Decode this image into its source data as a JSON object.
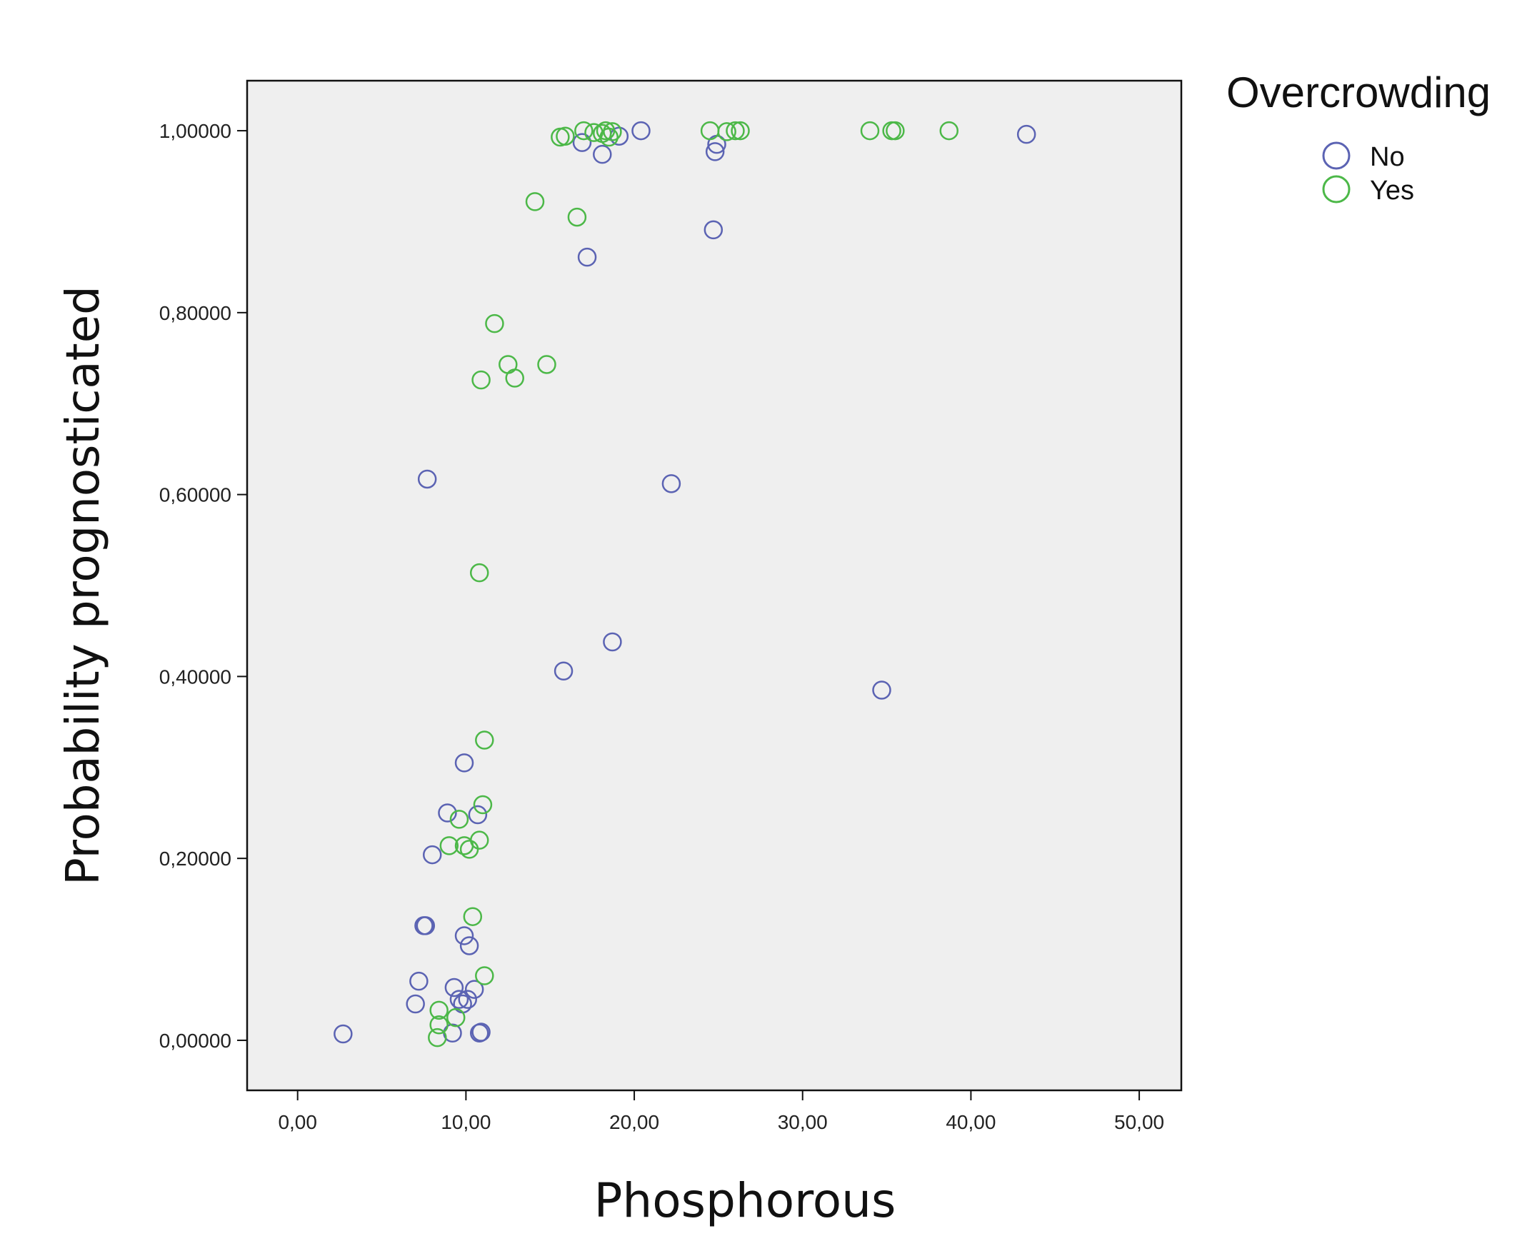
{
  "chart_data": {
    "type": "scatter",
    "xlabel": "Phosphorous",
    "ylabel": "Probability prognosticated",
    "xlim": [
      -3,
      52.5
    ],
    "ylim": [
      -0.055,
      1.055
    ],
    "xticks": [
      0,
      10,
      20,
      30,
      40,
      50
    ],
    "xtick_labels": [
      "0,00",
      "10,00",
      "20,00",
      "30,00",
      "40,00",
      "50,00"
    ],
    "yticks": [
      0,
      0.2,
      0.4,
      0.6,
      0.8,
      1.0
    ],
    "ytick_labels": [
      "0,00000",
      "0,20000",
      "0,40000",
      "0,60000",
      "0,80000",
      "1,00000"
    ],
    "grid": false,
    "legend": {
      "title": "Overcrowding",
      "placement": "top-right, outside plot"
    },
    "colors": {
      "No": "#5b63b3",
      "Yes": "#4cb848",
      "plot_background": "#efefef"
    },
    "series": [
      {
        "name": "No",
        "points": [
          {
            "x": 2.7,
            "y": 0.007
          },
          {
            "x": 7.0,
            "y": 0.04
          },
          {
            "x": 7.2,
            "y": 0.065
          },
          {
            "x": 7.5,
            "y": 0.126
          },
          {
            "x": 7.6,
            "y": 0.126
          },
          {
            "x": 7.7,
            "y": 0.617
          },
          {
            "x": 8.0,
            "y": 0.204
          },
          {
            "x": 8.9,
            "y": 0.25
          },
          {
            "x": 9.2,
            "y": 0.008
          },
          {
            "x": 9.3,
            "y": 0.058
          },
          {
            "x": 9.6,
            "y": 0.045
          },
          {
            "x": 9.8,
            "y": 0.04
          },
          {
            "x": 9.9,
            "y": 0.115
          },
          {
            "x": 9.9,
            "y": 0.305
          },
          {
            "x": 10.1,
            "y": 0.045
          },
          {
            "x": 10.2,
            "y": 0.104
          },
          {
            "x": 10.5,
            "y": 0.056
          },
          {
            "x": 10.7,
            "y": 0.248
          },
          {
            "x": 10.8,
            "y": 0.008
          },
          {
            "x": 10.9,
            "y": 0.009
          },
          {
            "x": 15.8,
            "y": 0.406
          },
          {
            "x": 16.9,
            "y": 0.987
          },
          {
            "x": 17.2,
            "y": 0.861
          },
          {
            "x": 18.1,
            "y": 0.974
          },
          {
            "x": 18.7,
            "y": 0.438
          },
          {
            "x": 19.1,
            "y": 0.994
          },
          {
            "x": 20.4,
            "y": 1.0
          },
          {
            "x": 22.2,
            "y": 0.612
          },
          {
            "x": 24.7,
            "y": 0.891
          },
          {
            "x": 24.8,
            "y": 0.977
          },
          {
            "x": 24.9,
            "y": 0.985
          },
          {
            "x": 34.7,
            "y": 0.385
          },
          {
            "x": 43.3,
            "y": 0.996
          }
        ]
      },
      {
        "name": "Yes",
        "points": [
          {
            "x": 8.3,
            "y": 0.003
          },
          {
            "x": 8.4,
            "y": 0.017
          },
          {
            "x": 8.4,
            "y": 0.033
          },
          {
            "x": 9.0,
            "y": 0.214
          },
          {
            "x": 9.4,
            "y": 0.025
          },
          {
            "x": 9.6,
            "y": 0.243
          },
          {
            "x": 9.9,
            "y": 0.214
          },
          {
            "x": 10.2,
            "y": 0.21
          },
          {
            "x": 10.4,
            "y": 0.136
          },
          {
            "x": 10.8,
            "y": 0.22
          },
          {
            "x": 10.8,
            "y": 0.514
          },
          {
            "x": 10.9,
            "y": 0.726
          },
          {
            "x": 11.0,
            "y": 0.259
          },
          {
            "x": 11.1,
            "y": 0.33
          },
          {
            "x": 11.1,
            "y": 0.071
          },
          {
            "x": 11.7,
            "y": 0.788
          },
          {
            "x": 12.5,
            "y": 0.743
          },
          {
            "x": 12.9,
            "y": 0.728
          },
          {
            "x": 14.1,
            "y": 0.922
          },
          {
            "x": 14.8,
            "y": 0.743
          },
          {
            "x": 15.6,
            "y": 0.993
          },
          {
            "x": 15.9,
            "y": 0.994
          },
          {
            "x": 16.6,
            "y": 0.905
          },
          {
            "x": 17.0,
            "y": 1.0
          },
          {
            "x": 17.6,
            "y": 0.998
          },
          {
            "x": 18.1,
            "y": 0.997
          },
          {
            "x": 18.3,
            "y": 1.0
          },
          {
            "x": 18.5,
            "y": 0.993
          },
          {
            "x": 18.7,
            "y": 0.999
          },
          {
            "x": 24.5,
            "y": 1.0
          },
          {
            "x": 25.5,
            "y": 0.999
          },
          {
            "x": 26.0,
            "y": 1.0
          },
          {
            "x": 26.3,
            "y": 1.0
          },
          {
            "x": 34.0,
            "y": 1.0
          },
          {
            "x": 35.3,
            "y": 1.0
          },
          {
            "x": 35.5,
            "y": 1.0
          },
          {
            "x": 38.7,
            "y": 1.0
          }
        ]
      }
    ]
  }
}
